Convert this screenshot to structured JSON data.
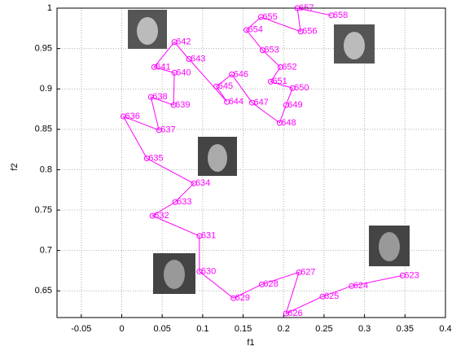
{
  "chart_data": {
    "type": "line",
    "x_label": "f1",
    "y_label": "f2",
    "x": [
      0.347,
      0.284,
      0.248,
      0.203,
      0.219,
      0.173,
      0.138,
      0.096,
      0.096,
      0.038,
      0.066,
      0.089,
      0.031,
      0.002,
      0.046,
      0.036,
      0.064,
      0.065,
      0.04,
      0.065,
      0.083,
      0.13,
      0.117,
      0.136,
      0.161,
      0.195,
      0.203,
      0.211,
      0.184,
      0.196,
      0.174,
      0.154,
      0.172,
      0.221,
      0.217,
      0.259
    ],
    "series": [
      {
        "color": "#ff00ff",
        "values": [
          0.669,
          0.656,
          0.643,
          0.622,
          0.673,
          0.658,
          0.641,
          0.674,
          0.718,
          0.743,
          0.76,
          0.783,
          0.814,
          0.866,
          0.849,
          0.89,
          0.88,
          0.92,
          0.927,
          0.958,
          0.937,
          0.884,
          0.903,
          0.918,
          0.883,
          0.858,
          0.88,
          0.901,
          0.909,
          0.927,
          0.948,
          0.973,
          0.989,
          0.971,
          1.0,
          0.991
        ],
        "point_labels": [
          "623",
          "624",
          "625",
          "626",
          "627",
          "628",
          "629",
          "630",
          "631",
          "632",
          "633",
          "634",
          "635",
          "636",
          "637",
          "638",
          "639",
          "640",
          "641",
          "642",
          "643",
          "644",
          "645",
          "646",
          "647",
          "648",
          "649",
          "650",
          "651",
          "652",
          "653",
          "654",
          "655",
          "656",
          "657",
          "658"
        ]
      }
    ],
    "xlim": [
      -0.08,
      0.4
    ],
    "ylim": [
      0.617,
      1
    ],
    "xticks": [
      -0.05,
      0,
      0.05,
      0.1,
      0.15,
      0.2,
      0.25,
      0.3,
      0.35,
      0.4
    ],
    "yticks": [
      0.65,
      0.7,
      0.75,
      0.8,
      0.85,
      0.9,
      0.95,
      1
    ],
    "grid": true
  }
}
